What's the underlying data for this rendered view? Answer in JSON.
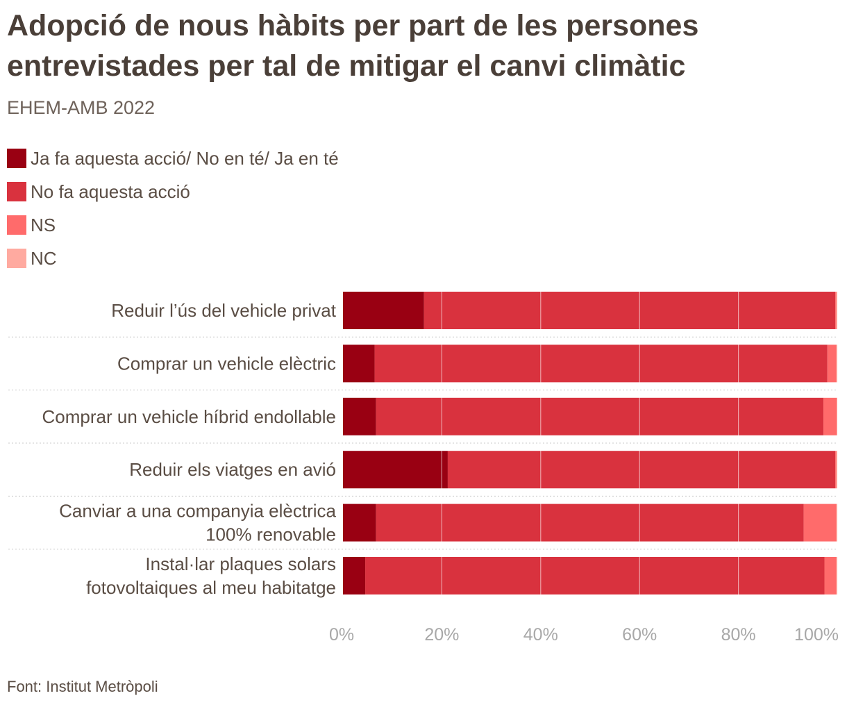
{
  "title": "Adopció de nous hàbits per part de les persones entrevistades per tal de mitigar el canvi climàtic",
  "subtitle": "EHEM-AMB 2022",
  "source": "Font: Institut Metròpoli",
  "chart_data": {
    "type": "bar",
    "orientation": "horizontal",
    "stacked": true,
    "title": "Adopció de nous hàbits per part de les persones entrevistades per tal de mitigar el canvi climàtic",
    "subtitle": "EHEM-AMB 2022",
    "categories": [
      [
        "Reduir l’ús del vehicle privat"
      ],
      [
        "Comprar un vehicle elèctric"
      ],
      [
        "Comprar un vehicle híbrid endollable"
      ],
      [
        "Reduir els viatges en avió"
      ],
      [
        "Canviar a una companyia elèctrica",
        "100% renovable"
      ],
      [
        "Instal·lar plaques solars",
        "fotovoltaiques al meu habitatge"
      ]
    ],
    "series": [
      {
        "name": "Ja fa aquesta acció/ No en té/ Ja en té",
        "color": "#990012",
        "values": [
          16.4,
          6.4,
          6.7,
          21.2,
          6.7,
          4.5
        ]
      },
      {
        "name": "No fa aquesta acció",
        "color": "#d9323e",
        "values": [
          83.2,
          91.6,
          90.5,
          78.4,
          86.5,
          92.9
        ]
      },
      {
        "name": "NS",
        "color": "#ff6b6b",
        "values": [
          0.2,
          1.8,
          2.7,
          0.2,
          6.6,
          2.4
        ]
      },
      {
        "name": "NC",
        "color": "#ffaaa0",
        "values": [
          0.2,
          0.2,
          0.1,
          0.2,
          0.2,
          0.2
        ]
      }
    ],
    "xlim": [
      0,
      100
    ],
    "x_ticks": [
      0,
      20,
      40,
      60,
      80,
      100
    ],
    "x_tick_labels": [
      "0%",
      "20%",
      "40%",
      "60%",
      "80%",
      "100%"
    ],
    "grid": true,
    "legend_position": "top-left"
  }
}
